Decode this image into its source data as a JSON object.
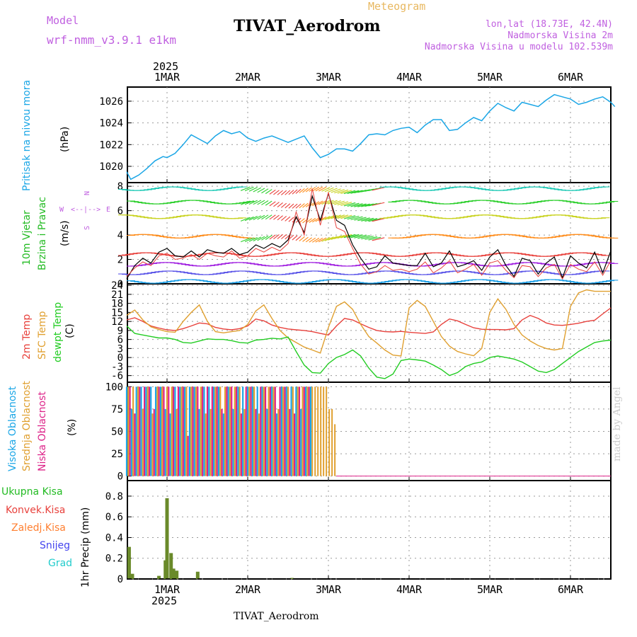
{
  "header": {
    "model_label": "Model",
    "model_name": "wrf-nmm_v3.9.1 e1km",
    "title": "TIVAT_Aerodrom",
    "subtitle": "Meteogram",
    "lonlat": "lon,lat (18.73E, 42.4N)",
    "elevation": "Nadmorska Visina 2m",
    "model_elevation": "Nadmorska Visina u modelu 102.539m",
    "footer": "TIVAT_Aerodrom",
    "watermark": "made by Angel",
    "year": "2025"
  },
  "colors": {
    "pressure": "#1aa6e6",
    "wind_label": "#22bb22",
    "temp2m": "#e8413c",
    "sfc": "#e0a030",
    "dewpt": "#22cc22",
    "high_cloud": "#1aa6e6",
    "mid_cloud": "#e0a030",
    "low_cloud": "#dd2288",
    "rose": "#c060e0",
    "header": "#c060e0"
  },
  "chart_data": [
    {
      "type": "line",
      "name": "pressure",
      "ylabel_left": "Pritisak na nivou mora",
      "unit": "(hPa)",
      "x_days": [
        "1MAR",
        "2MAR",
        "3MAR",
        "4MAR",
        "5MAR",
        "6MAR"
      ],
      "x_range": [
        -0.5,
        5.55
      ],
      "ylim": [
        1018.5,
        1027.3
      ],
      "yticks": [
        1020,
        1022,
        1024,
        1026
      ],
      "series": [
        {
          "color": "#1aa6e6",
          "x": [
            -0.5,
            -0.45,
            -0.4,
            -0.35,
            -0.25,
            -0.15,
            -0.05,
            0.0,
            0.1,
            0.2,
            0.3,
            0.4,
            0.5,
            0.6,
            0.7,
            0.8,
            0.9,
            1.0,
            1.1,
            1.2,
            1.3,
            1.4,
            1.5,
            1.6,
            1.7,
            1.8,
            1.9,
            2.0,
            2.1,
            2.2,
            2.3,
            2.4,
            2.5,
            2.6,
            2.7,
            2.8,
            2.9,
            3.0,
            3.1,
            3.2,
            3.3,
            3.4,
            3.5,
            3.6,
            3.7,
            3.8,
            3.9,
            4.0,
            4.1,
            4.2,
            4.3,
            4.4,
            4.5,
            4.6,
            4.7,
            4.8,
            4.9,
            5.0,
            5.1,
            5.2,
            5.3,
            5.4,
            5.5,
            5.55
          ],
          "y": [
            1019.5,
            1018.8,
            1019.0,
            1019.2,
            1019.8,
            1020.5,
            1020.9,
            1020.8,
            1021.2,
            1022.0,
            1022.9,
            1022.5,
            1022.1,
            1022.8,
            1023.3,
            1023.0,
            1023.2,
            1022.6,
            1022.3,
            1022.6,
            1022.8,
            1022.5,
            1022.2,
            1022.5,
            1022.8,
            1021.7,
            1020.8,
            1021.1,
            1021.6,
            1021.6,
            1021.4,
            1022.1,
            1022.9,
            1023.0,
            1022.9,
            1023.3,
            1023.5,
            1023.6,
            1023.1,
            1023.8,
            1024.3,
            1024.3,
            1023.3,
            1023.4,
            1024.0,
            1024.5,
            1024.2,
            1025.1,
            1025.8,
            1025.4,
            1025.1,
            1025.9,
            1025.7,
            1025.5,
            1026.1,
            1026.6,
            1026.4,
            1026.2,
            1025.7,
            1025.9,
            1026.2,
            1026.4,
            1025.9,
            1025.5
          ]
        }
      ]
    },
    {
      "type": "line",
      "name": "wind",
      "ylabel_left": [
        "10m Vjetar",
        "Brzina i Pravac"
      ],
      "unit": "(m/s)",
      "compass": {
        "n": "N",
        "s": "S",
        "e": "E",
        "w": "W"
      },
      "x_range": [
        -0.5,
        5.55
      ],
      "ylim": [
        0,
        8.3
      ],
      "yticks": [
        0,
        2,
        4,
        6,
        8
      ],
      "series": [
        {
          "name": "speed_black",
          "color": "#000000",
          "x": [
            -0.5,
            -0.4,
            -0.3,
            -0.2,
            -0.1,
            0.0,
            0.1,
            0.2,
            0.3,
            0.4,
            0.5,
            0.6,
            0.7,
            0.8,
            0.9,
            1.0,
            1.1,
            1.2,
            1.3,
            1.4,
            1.5,
            1.6,
            1.7,
            1.8,
            1.9,
            2.0,
            2.1,
            2.2,
            2.3,
            2.4,
            2.5,
            2.6,
            2.7,
            2.8,
            2.9,
            3.0,
            3.1,
            3.2,
            3.3,
            3.4,
            3.5,
            3.6,
            3.7,
            3.8,
            3.9,
            4.0,
            4.1,
            4.2,
            4.3,
            4.4,
            4.5,
            4.6,
            4.7,
            4.8,
            4.9,
            5.0,
            5.1,
            5.2,
            5.3,
            5.4,
            5.5
          ],
          "y": [
            0.4,
            1.5,
            2.1,
            1.7,
            2.6,
            2.9,
            2.3,
            2.2,
            2.7,
            2.2,
            2.8,
            2.6,
            2.5,
            2.9,
            2.4,
            2.6,
            3.2,
            2.9,
            3.3,
            3.0,
            3.6,
            5.5,
            4.2,
            7.2,
            5.2,
            7.4,
            5.2,
            4.8,
            3.2,
            2.1,
            1.2,
            1.4,
            2.3,
            1.7,
            1.6,
            1.5,
            1.5,
            2.5,
            1.4,
            1.7,
            2.7,
            1.4,
            1.6,
            1.9,
            1.1,
            2.2,
            2.8,
            1.5,
            0.6,
            2.1,
            1.9,
            0.8,
            1.7,
            2.2,
            0.5,
            2.3,
            1.7,
            1.3,
            2.6,
            0.9,
            2.7
          ]
        },
        {
          "name": "gust_red",
          "color": "#e8413c",
          "x": [
            -0.5,
            -0.4,
            -0.3,
            -0.2,
            -0.1,
            0.0,
            0.1,
            0.2,
            0.3,
            0.4,
            0.5,
            0.6,
            0.7,
            0.8,
            0.9,
            1.0,
            1.1,
            1.2,
            1.3,
            1.4,
            1.5,
            1.6,
            1.7,
            1.8,
            1.9,
            2.0,
            2.1,
            2.2,
            2.3,
            2.4,
            2.5,
            2.6,
            2.7,
            2.8,
            2.9,
            3.0,
            3.1,
            3.2,
            3.3,
            3.4,
            3.5,
            3.6,
            3.7,
            3.8,
            3.9,
            4.0,
            4.1,
            4.2,
            4.3,
            4.4,
            4.5,
            4.6,
            4.7,
            4.8,
            4.9,
            5.0,
            5.1,
            5.2,
            5.3,
            5.4,
            5.5
          ],
          "y": [
            0.6,
            1.3,
            1.8,
            1.5,
            2.3,
            2.5,
            2.0,
            2.1,
            2.4,
            2.0,
            2.5,
            2.3,
            2.2,
            2.7,
            2.1,
            2.3,
            2.9,
            2.6,
            3.0,
            2.7,
            3.3,
            5.9,
            4.0,
            7.8,
            4.8,
            7.5,
            4.6,
            4.3,
            2.9,
            1.6,
            0.8,
            1.0,
            1.5,
            1.1,
            1.2,
            1.0,
            1.2,
            1.8,
            0.9,
            1.3,
            1.9,
            0.9,
            1.2,
            1.6,
            0.7,
            1.7,
            1.9,
            1.1,
            0.5,
            1.5,
            1.4,
            0.6,
            1.3,
            1.6,
            0.4,
            1.6,
            1.2,
            1.0,
            1.8,
            0.7,
            1.9
          ]
        }
      ]
    },
    {
      "type": "line",
      "name": "temperature",
      "ylabel_left": [
        "2m Temp",
        "SFC Temp",
        "dewpt Temp"
      ],
      "unit": "(C)",
      "x_range": [
        -0.5,
        5.55
      ],
      "ylim": [
        -8.2,
        24.5
      ],
      "yticks": [
        -6,
        -3,
        0,
        3,
        6,
        9,
        12,
        15,
        18,
        21,
        24
      ],
      "series": [
        {
          "name": "2m Temp",
          "color": "#e8413c",
          "x": [
            -0.5,
            -0.4,
            -0.3,
            -0.2,
            -0.1,
            0.0,
            0.1,
            0.2,
            0.3,
            0.4,
            0.5,
            0.6,
            0.7,
            0.8,
            0.9,
            1.0,
            1.1,
            1.2,
            1.3,
            1.4,
            1.5,
            1.6,
            1.7,
            1.8,
            1.9,
            2.0,
            2.1,
            2.2,
            2.3,
            2.4,
            2.5,
            2.6,
            2.7,
            2.8,
            2.9,
            3.0,
            3.1,
            3.2,
            3.3,
            3.4,
            3.5,
            3.6,
            3.7,
            3.8,
            3.9,
            4.0,
            4.1,
            4.2,
            4.3,
            4.4,
            4.5,
            4.6,
            4.7,
            4.8,
            4.9,
            5.0,
            5.1,
            5.2,
            5.3,
            5.4,
            5.5
          ],
          "y": [
            12.5,
            13.2,
            12.0,
            10.5,
            9.8,
            9.2,
            9.0,
            9.6,
            10.5,
            11.5,
            11.2,
            10.0,
            9.5,
            9.2,
            9.6,
            10.5,
            12.8,
            12.2,
            10.8,
            10.0,
            9.5,
            9.2,
            9.0,
            8.6,
            8.0,
            7.5,
            10.5,
            13.0,
            12.5,
            11.2,
            10.0,
            9.0,
            8.6,
            8.5,
            8.7,
            8.4,
            8.2,
            8.0,
            8.5,
            11.0,
            12.8,
            12.2,
            11.0,
            9.9,
            9.4,
            9.3,
            9.3,
            9.2,
            9.6,
            12.5,
            14.0,
            13.0,
            11.5,
            10.8,
            10.7,
            11.0,
            11.4,
            12.0,
            12.4,
            14.5,
            16.5
          ]
        },
        {
          "name": "SFC Temp",
          "color": "#e0a030",
          "x": [
            -0.5,
            -0.4,
            -0.3,
            -0.2,
            -0.1,
            0.0,
            0.1,
            0.2,
            0.3,
            0.4,
            0.5,
            0.6,
            0.7,
            0.8,
            0.9,
            1.0,
            1.1,
            1.2,
            1.3,
            1.4,
            1.5,
            1.6,
            1.7,
            1.8,
            1.9,
            2.0,
            2.1,
            2.2,
            2.3,
            2.4,
            2.5,
            2.6,
            2.7,
            2.8,
            2.9,
            3.0,
            3.1,
            3.2,
            3.3,
            3.4,
            3.5,
            3.6,
            3.7,
            3.8,
            3.9,
            4.0,
            4.1,
            4.2,
            4.3,
            4.4,
            4.5,
            4.6,
            4.7,
            4.8,
            4.9,
            5.0,
            5.1,
            5.2,
            5.3,
            5.4,
            5.5
          ],
          "y": [
            14.0,
            15.8,
            12.5,
            10.2,
            9.3,
            8.6,
            8.4,
            12.0,
            15.0,
            17.5,
            12.0,
            8.6,
            8.2,
            8.6,
            9.0,
            11.0,
            15.5,
            17.5,
            13.0,
            9.0,
            6.5,
            5.0,
            3.5,
            2.5,
            1.5,
            10.0,
            17.0,
            18.5,
            16.0,
            11.0,
            7.0,
            4.8,
            2.5,
            0.8,
            0.5,
            16.5,
            19.0,
            17.0,
            12.0,
            7.0,
            3.8,
            2.0,
            1.2,
            0.6,
            3.0,
            15.0,
            19.5,
            16.0,
            11.0,
            7.5,
            5.5,
            4.0,
            3.0,
            2.5,
            3.0,
            17.0,
            21.5,
            22.5,
            22.0,
            22.0,
            22.0
          ]
        },
        {
          "name": "dewpt Temp",
          "color": "#22cc22",
          "x": [
            -0.5,
            -0.4,
            -0.3,
            -0.2,
            -0.1,
            0.0,
            0.1,
            0.2,
            0.3,
            0.4,
            0.5,
            0.6,
            0.7,
            0.8,
            0.9,
            1.0,
            1.1,
            1.2,
            1.3,
            1.4,
            1.5,
            1.6,
            1.7,
            1.8,
            1.9,
            2.0,
            2.1,
            2.2,
            2.3,
            2.4,
            2.5,
            2.6,
            2.7,
            2.8,
            2.9,
            3.0,
            3.1,
            3.2,
            3.3,
            3.4,
            3.5,
            3.6,
            3.7,
            3.8,
            3.9,
            4.0,
            4.1,
            4.2,
            4.3,
            4.4,
            4.5,
            4.6,
            4.7,
            4.8,
            4.9,
            5.0,
            5.1,
            5.2,
            5.3,
            5.4,
            5.5
          ],
          "y": [
            10.5,
            8.0,
            7.5,
            7.0,
            6.5,
            6.5,
            6.0,
            5.0,
            4.8,
            5.5,
            6.2,
            6.0,
            6.0,
            5.6,
            5.0,
            4.8,
            5.8,
            6.0,
            6.4,
            6.2,
            6.8,
            2.0,
            -2.5,
            -5.0,
            -5.2,
            -2.0,
            0.0,
            1.0,
            2.5,
            0.5,
            -3.5,
            -6.5,
            -7.0,
            -5.5,
            -1.0,
            -0.5,
            -0.8,
            -1.2,
            -2.5,
            -4.0,
            -6.0,
            -5.0,
            -3.0,
            -2.0,
            -1.5,
            0.0,
            0.5,
            0.0,
            -0.5,
            -1.5,
            -3.0,
            -4.5,
            -5.0,
            -4.0,
            -2.0,
            0.0,
            2.0,
            3.5,
            5.0,
            5.5,
            5.8
          ]
        }
      ]
    },
    {
      "type": "bar",
      "name": "cloudiness",
      "ylabel_left": [
        "Visoka Oblacnost",
        "Srednja Oblacnost",
        "Niska Oblacnost"
      ],
      "unit": "(%)",
      "x_range": [
        -0.5,
        5.55
      ],
      "ylim": [
        -5,
        105
      ],
      "yticks": [
        0,
        25,
        50,
        75,
        100
      ],
      "cover_end": 1.8,
      "extended_mid_end": 2.1
    },
    {
      "type": "bar",
      "name": "precipitation",
      "ylabel_left": [
        "Ukupna Kisa",
        "Konvek.Kisa",
        "Zaledj.Kisa",
        "Snijeg",
        "Grad"
      ],
      "legend_colors": [
        "#22bb22",
        "#e8413c",
        "#ff7f30",
        "#4444ee",
        "#22cccc"
      ],
      "ylabel": "1hr Precip (mm)",
      "x_range": [
        -0.5,
        5.55
      ],
      "ylim": [
        0,
        0.95
      ],
      "yticks": [
        0,
        0.2,
        0.4,
        0.6,
        0.8
      ],
      "x": [
        -0.47,
        -0.43,
        -0.1,
        -0.02,
        0.0,
        0.05,
        0.08,
        0.12,
        0.38,
        1.55
      ],
      "values": [
        0.31,
        0.05,
        0.03,
        0.18,
        0.78,
        0.25,
        0.1,
        0.08,
        0.07,
        0.01
      ]
    }
  ]
}
